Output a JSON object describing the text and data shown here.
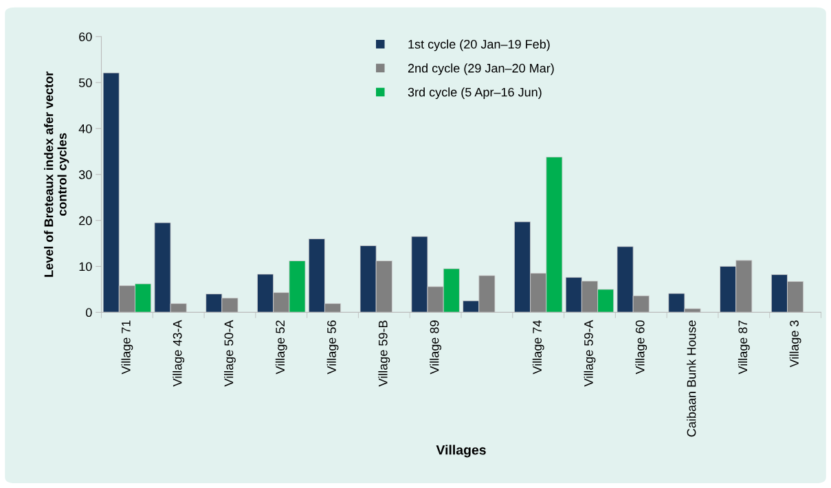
{
  "chart_data": {
    "type": "bar",
    "xlabel": "Villages",
    "ylabel": "Level of Breteaux index afer vector\ncontrol cycles",
    "categories": [
      "Village 71",
      "Village 43-A",
      "Village 50-A",
      "Village 52",
      "Village 56",
      "Village 59-B",
      "Village 89",
      null,
      "Village 74",
      "Village 59-A",
      "Village 60",
      "Caibaan Bunk House",
      "Village 87",
      "Village 3"
    ],
    "series": [
      {
        "name": "1st cycle (20 Jan–19 Feb)",
        "color": "#17365d",
        "values": [
          52.1,
          19.5,
          4.0,
          8.3,
          16.0,
          14.5,
          16.5,
          2.5,
          19.7,
          7.6,
          14.3,
          4.1,
          10.0,
          8.2
        ]
      },
      {
        "name": "2nd cycle (29 Jan–20 Mar)",
        "color": "#808080",
        "values": [
          5.8,
          1.9,
          3.1,
          4.3,
          1.9,
          11.2,
          5.6,
          8.0,
          8.5,
          6.8,
          3.6,
          0.8,
          11.3,
          6.7
        ]
      },
      {
        "name": "3rd cycle (5 Apr–16 Jun)",
        "color": "#00b050",
        "values": [
          6.2,
          null,
          null,
          11.2,
          null,
          null,
          9.5,
          null,
          33.8,
          5.0,
          null,
          null,
          null,
          null
        ]
      }
    ],
    "ylim": [
      0,
      60
    ],
    "yticks": [
      0,
      10,
      20,
      30,
      40,
      50,
      60
    ],
    "grid": false,
    "legend": "top"
  }
}
